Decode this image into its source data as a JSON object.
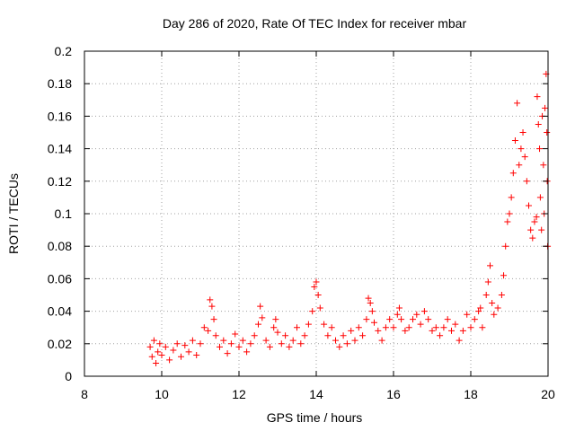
{
  "chart_data": {
    "type": "scatter",
    "title": "Day 286 of 2020, Rate Of TEC Index for receiver mbar",
    "xlabel": "GPS time / hours",
    "ylabel": "ROTI / TECUs",
    "xlim": [
      8,
      20
    ],
    "ylim": [
      0,
      0.2
    ],
    "x_ticks": [
      8,
      10,
      12,
      14,
      16,
      18,
      20
    ],
    "y_ticks": [
      0,
      0.02,
      0.04,
      0.06,
      0.08,
      0.1,
      0.12,
      0.14,
      0.16,
      0.18,
      0.2
    ],
    "x_tick_labels": [
      "8",
      "10",
      "12",
      "14",
      "16",
      "18",
      "20"
    ],
    "y_tick_labels": [
      "0",
      "0.02",
      "0.04",
      "0.06",
      "0.08",
      "0.1",
      "0.12",
      "0.14",
      "0.16",
      "0.18",
      "0.2"
    ],
    "grid": true,
    "marker": "+",
    "color": "#ff0000",
    "series": [
      {
        "name": "ROTI",
        "points": [
          [
            9.7,
            0.018
          ],
          [
            9.75,
            0.012
          ],
          [
            9.8,
            0.022
          ],
          [
            9.85,
            0.008
          ],
          [
            9.9,
            0.015
          ],
          [
            9.95,
            0.02
          ],
          [
            10.0,
            0.013
          ],
          [
            10.1,
            0.018
          ],
          [
            10.2,
            0.01
          ],
          [
            10.3,
            0.016
          ],
          [
            10.4,
            0.02
          ],
          [
            10.5,
            0.012
          ],
          [
            10.6,
            0.019
          ],
          [
            10.7,
            0.015
          ],
          [
            10.8,
            0.022
          ],
          [
            10.9,
            0.013
          ],
          [
            11.0,
            0.02
          ],
          [
            11.1,
            0.03
          ],
          [
            11.2,
            0.028
          ],
          [
            11.25,
            0.047
          ],
          [
            11.3,
            0.043
          ],
          [
            11.35,
            0.035
          ],
          [
            11.4,
            0.025
          ],
          [
            11.5,
            0.018
          ],
          [
            11.6,
            0.022
          ],
          [
            11.7,
            0.014
          ],
          [
            11.8,
            0.02
          ],
          [
            11.9,
            0.026
          ],
          [
            12.0,
            0.018
          ],
          [
            12.1,
            0.022
          ],
          [
            12.2,
            0.015
          ],
          [
            12.3,
            0.02
          ],
          [
            12.4,
            0.025
          ],
          [
            12.5,
            0.032
          ],
          [
            12.55,
            0.043
          ],
          [
            12.6,
            0.036
          ],
          [
            12.7,
            0.022
          ],
          [
            12.8,
            0.018
          ],
          [
            12.9,
            0.03
          ],
          [
            12.95,
            0.035
          ],
          [
            13.0,
            0.027
          ],
          [
            13.1,
            0.02
          ],
          [
            13.2,
            0.025
          ],
          [
            13.3,
            0.018
          ],
          [
            13.4,
            0.022
          ],
          [
            13.5,
            0.03
          ],
          [
            13.6,
            0.02
          ],
          [
            13.7,
            0.025
          ],
          [
            13.8,
            0.032
          ],
          [
            13.9,
            0.04
          ],
          [
            13.95,
            0.055
          ],
          [
            14.0,
            0.058
          ],
          [
            14.05,
            0.05
          ],
          [
            14.1,
            0.042
          ],
          [
            14.2,
            0.032
          ],
          [
            14.3,
            0.025
          ],
          [
            14.4,
            0.03
          ],
          [
            14.5,
            0.022
          ],
          [
            14.6,
            0.018
          ],
          [
            14.7,
            0.025
          ],
          [
            14.8,
            0.02
          ],
          [
            14.9,
            0.028
          ],
          [
            15.0,
            0.022
          ],
          [
            15.1,
            0.03
          ],
          [
            15.2,
            0.025
          ],
          [
            15.3,
            0.035
          ],
          [
            15.35,
            0.048
          ],
          [
            15.4,
            0.045
          ],
          [
            15.45,
            0.04
          ],
          [
            15.5,
            0.033
          ],
          [
            15.6,
            0.028
          ],
          [
            15.7,
            0.022
          ],
          [
            15.8,
            0.03
          ],
          [
            15.9,
            0.035
          ],
          [
            16.0,
            0.03
          ],
          [
            16.1,
            0.038
          ],
          [
            16.15,
            0.042
          ],
          [
            16.2,
            0.035
          ],
          [
            16.3,
            0.028
          ],
          [
            16.4,
            0.03
          ],
          [
            16.5,
            0.035
          ],
          [
            16.6,
            0.038
          ],
          [
            16.7,
            0.032
          ],
          [
            16.8,
            0.04
          ],
          [
            16.9,
            0.035
          ],
          [
            17.0,
            0.028
          ],
          [
            17.1,
            0.03
          ],
          [
            17.2,
            0.025
          ],
          [
            17.3,
            0.03
          ],
          [
            17.4,
            0.035
          ],
          [
            17.5,
            0.028
          ],
          [
            17.6,
            0.032
          ],
          [
            17.7,
            0.022
          ],
          [
            17.8,
            0.028
          ],
          [
            17.9,
            0.038
          ],
          [
            18.0,
            0.03
          ],
          [
            18.1,
            0.035
          ],
          [
            18.2,
            0.04
          ],
          [
            18.25,
            0.042
          ],
          [
            18.3,
            0.03
          ],
          [
            18.4,
            0.05
          ],
          [
            18.45,
            0.058
          ],
          [
            18.5,
            0.068
          ],
          [
            18.55,
            0.045
          ],
          [
            18.6,
            0.038
          ],
          [
            18.7,
            0.042
          ],
          [
            18.8,
            0.05
          ],
          [
            18.85,
            0.062
          ],
          [
            18.9,
            0.08
          ],
          [
            18.95,
            0.095
          ],
          [
            19.0,
            0.1
          ],
          [
            19.05,
            0.11
          ],
          [
            19.1,
            0.125
          ],
          [
            19.15,
            0.145
          ],
          [
            19.2,
            0.168
          ],
          [
            19.25,
            0.13
          ],
          [
            19.3,
            0.14
          ],
          [
            19.35,
            0.15
          ],
          [
            19.4,
            0.135
          ],
          [
            19.45,
            0.12
          ],
          [
            19.5,
            0.105
          ],
          [
            19.55,
            0.09
          ],
          [
            19.6,
            0.085
          ],
          [
            19.65,
            0.095
          ],
          [
            19.7,
            0.098
          ],
          [
            19.72,
            0.172
          ],
          [
            19.75,
            0.155
          ],
          [
            19.78,
            0.14
          ],
          [
            19.8,
            0.11
          ],
          [
            19.83,
            0.09
          ],
          [
            19.85,
            0.16
          ],
          [
            19.88,
            0.13
          ],
          [
            19.9,
            0.1
          ],
          [
            19.92,
            0.165
          ],
          [
            19.95,
            0.186
          ],
          [
            19.97,
            0.15
          ],
          [
            19.98,
            0.12
          ],
          [
            19.99,
            0.08
          ]
        ]
      }
    ]
  }
}
